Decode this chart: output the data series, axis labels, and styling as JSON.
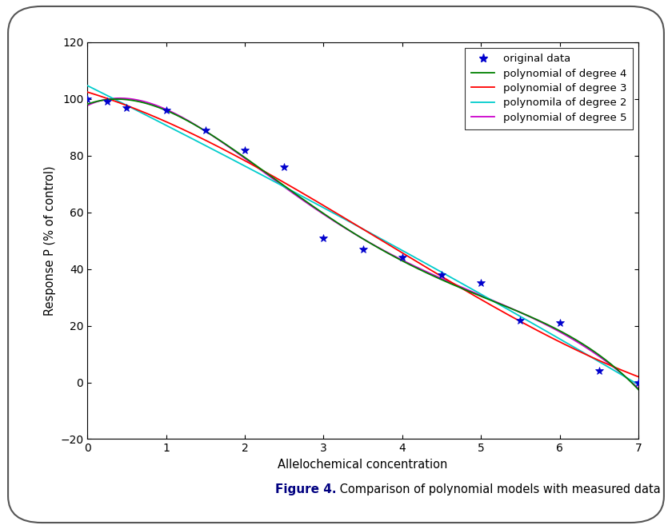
{
  "scatter_x": [
    0.0,
    0.25,
    0.5,
    1.0,
    1.5,
    2.0,
    2.5,
    3.0,
    3.5,
    4.0,
    4.5,
    5.0,
    5.5,
    6.0,
    6.5,
    7.0
  ],
  "scatter_y": [
    100,
    99,
    97,
    96,
    89,
    82,
    76,
    51,
    47,
    44,
    38,
    35,
    22,
    21,
    4,
    0
  ],
  "poly4_color": "#008000",
  "poly3_color": "#ff0000",
  "poly2_color": "#00cccc",
  "poly5_color": "#cc00cc",
  "scatter_color": "#0000cd",
  "xlabel": "Allelochemical concentration",
  "ylabel": "Response P (% of control)",
  "xlim": [
    0,
    7
  ],
  "ylim": [
    -20,
    120
  ],
  "xticks": [
    0,
    1,
    2,
    3,
    4,
    5,
    6,
    7
  ],
  "yticks": [
    -20,
    0,
    20,
    40,
    60,
    80,
    100,
    120
  ],
  "legend_labels": [
    "original data",
    "polynomial of degree 4",
    "polynomial of degree 3",
    "polynomila of degree 2",
    "polynomial of degree 5"
  ],
  "figure_caption_bold": "Figure 4.",
  "figure_caption_normal": " Comparison of polynomial models with measured data",
  "background_color": "#ffffff"
}
